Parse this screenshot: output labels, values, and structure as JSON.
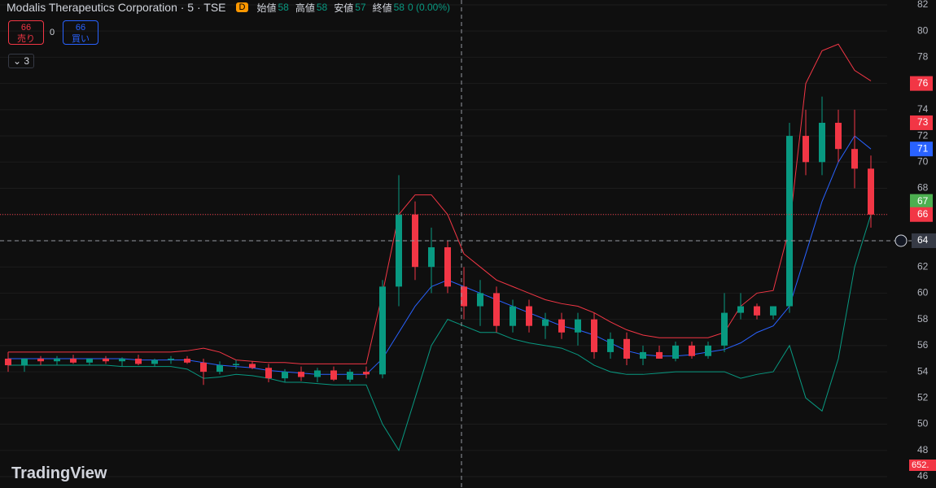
{
  "header": {
    "symbol": "Modalis Therapeutics Corporation · 5 · TSE",
    "badge": "D",
    "ohlc": [
      {
        "label": "始値",
        "value": 58
      },
      {
        "label": "高値",
        "value": 58
      },
      {
        "label": "安値",
        "value": 57
      },
      {
        "label": "終値",
        "value": 58
      }
    ],
    "change": "0 (0.00%)"
  },
  "order_panel": {
    "sell_price": 66,
    "sell_label": "売り",
    "spread": 0,
    "buy_price": 66,
    "buy_label": "買い",
    "indicators_count": 3
  },
  "watermark": "TradingView",
  "volume_label": "652.",
  "chart_data": {
    "type": "candlestick",
    "open": [
      55,
      54.5,
      55,
      54.8,
      55,
      54.7,
      55,
      54.8,
      55,
      54.6,
      54.9,
      55,
      54.7,
      54,
      54.5,
      54.6,
      54.3,
      53.5,
      54,
      53.6,
      54.1,
      53.4,
      54,
      53.8,
      60.5,
      66,
      62,
      63.5,
      60.5,
      59,
      60,
      57.5,
      59,
      57.5,
      58,
      57,
      58,
      55.5,
      56.5,
      55,
      55.5,
      55,
      56,
      55.2,
      56,
      58.5,
      59,
      58.3,
      59,
      72,
      70,
      73,
      71,
      69.5
    ],
    "high": [
      55.5,
      55,
      55.2,
      55.2,
      55.3,
      55,
      55.2,
      55.1,
      55.3,
      55,
      55.2,
      55.2,
      55,
      54.8,
      54.9,
      54.8,
      54.6,
      54.2,
      54.4,
      54.3,
      54.4,
      54.2,
      54.4,
      61,
      69,
      67,
      65,
      64,
      62,
      61,
      60.5,
      59.5,
      59.5,
      58.5,
      58.5,
      58.5,
      58.5,
      57,
      57,
      56,
      56,
      56.3,
      56.3,
      56.3,
      60,
      60,
      59.2,
      59,
      73,
      74,
      75,
      74,
      74,
      70.5
    ],
    "low": [
      54,
      54,
      54.5,
      54.5,
      54.6,
      54.5,
      54.6,
      54.4,
      54.5,
      54.4,
      54.6,
      54.6,
      53,
      53.8,
      54.2,
      54.2,
      53.2,
      53.2,
      53.3,
      53.2,
      53.3,
      53.2,
      53.5,
      53.5,
      59,
      61,
      60,
      60,
      58,
      57.5,
      57,
      57,
      57,
      56.5,
      56.5,
      56,
      55,
      55,
      54.5,
      54.5,
      55,
      54.8,
      55,
      55,
      55.5,
      58,
      58,
      58,
      58.5,
      69,
      69,
      70,
      68,
      65
    ],
    "close": [
      54.5,
      55,
      54.8,
      55,
      54.7,
      55,
      54.8,
      55,
      54.6,
      54.9,
      55,
      54.7,
      54,
      54.5,
      54.6,
      54.3,
      53.5,
      54,
      53.6,
      54.1,
      53.4,
      54,
      53.8,
      60.5,
      66,
      62,
      63.5,
      60.5,
      59,
      60,
      57.5,
      59,
      57.5,
      58,
      57,
      58,
      55.5,
      56.5,
      55,
      55.5,
      55,
      56,
      55.2,
      56,
      58.5,
      59,
      58.3,
      59,
      72,
      70,
      73,
      71,
      69.5,
      66
    ],
    "up_color": "#089981",
    "down_color": "#f23645",
    "bands": [
      {
        "name": "upper",
        "color": "#f23645",
        "values": [
          55.5,
          55.5,
          55.5,
          55.5,
          55.5,
          55.5,
          55.5,
          55.5,
          55.5,
          55.5,
          55.5,
          55.6,
          55.8,
          55.5,
          54.9,
          54.8,
          54.7,
          54.7,
          54.6,
          54.6,
          54.6,
          54.6,
          54.6,
          60,
          66,
          67.5,
          67.5,
          66,
          63,
          62,
          61,
          60.5,
          60,
          59.5,
          59.2,
          59,
          58.5,
          57.8,
          57.2,
          56.8,
          56.6,
          56.6,
          56.6,
          56.6,
          57,
          59,
          60,
          60.2,
          65,
          76,
          78.5,
          79,
          77,
          76.2
        ]
      },
      {
        "name": "basis",
        "color": "#2962ff",
        "values": [
          55,
          55,
          55,
          55,
          55,
          55,
          55,
          55,
          54.9,
          54.9,
          54.9,
          54.9,
          54.7,
          54.5,
          54.4,
          54.3,
          54.1,
          54,
          53.9,
          53.8,
          53.8,
          53.8,
          53.8,
          55,
          57,
          59,
          60.5,
          61,
          60.5,
          60,
          59.5,
          59,
          58.5,
          58,
          57.5,
          57.2,
          56.8,
          56.2,
          55.6,
          55.3,
          55.2,
          55.2,
          55.3,
          55.5,
          55.7,
          56.2,
          57,
          57.5,
          59,
          63,
          67,
          70,
          72,
          71
        ]
      },
      {
        "name": "lower",
        "color": "#089981",
        "values": [
          54.5,
          54.5,
          54.5,
          54.5,
          54.5,
          54.5,
          54.5,
          54.4,
          54.4,
          54.4,
          54.4,
          54.2,
          53.5,
          53.6,
          53.8,
          53.7,
          53.5,
          53.2,
          53.2,
          53.1,
          53,
          53,
          53,
          50,
          48,
          52,
          56,
          58,
          57.5,
          57,
          57,
          56.5,
          56.2,
          56,
          55.8,
          55.3,
          54.5,
          54,
          53.8,
          53.8,
          53.9,
          54,
          54,
          54,
          54,
          53.5,
          53.8,
          54,
          56,
          52,
          51,
          55,
          62,
          66
        ]
      }
    ],
    "ylim": [
      45.13,
      82.37
    ],
    "yticks": [
      46,
      48,
      50,
      52,
      54,
      56,
      58,
      60,
      62,
      64,
      66,
      68,
      70,
      72,
      74,
      76,
      78,
      80,
      82
    ],
    "grid": true,
    "price_line": 66,
    "crosshair_price": 64,
    "price_labels": [
      {
        "value": 76,
        "color": "#f23645"
      },
      {
        "value": 73,
        "color": "#f23645"
      },
      {
        "value": 71,
        "color": "#2962ff"
      },
      {
        "value": 67,
        "color": "#4caf50"
      },
      {
        "value": 66,
        "color": "#f23645"
      }
    ]
  }
}
